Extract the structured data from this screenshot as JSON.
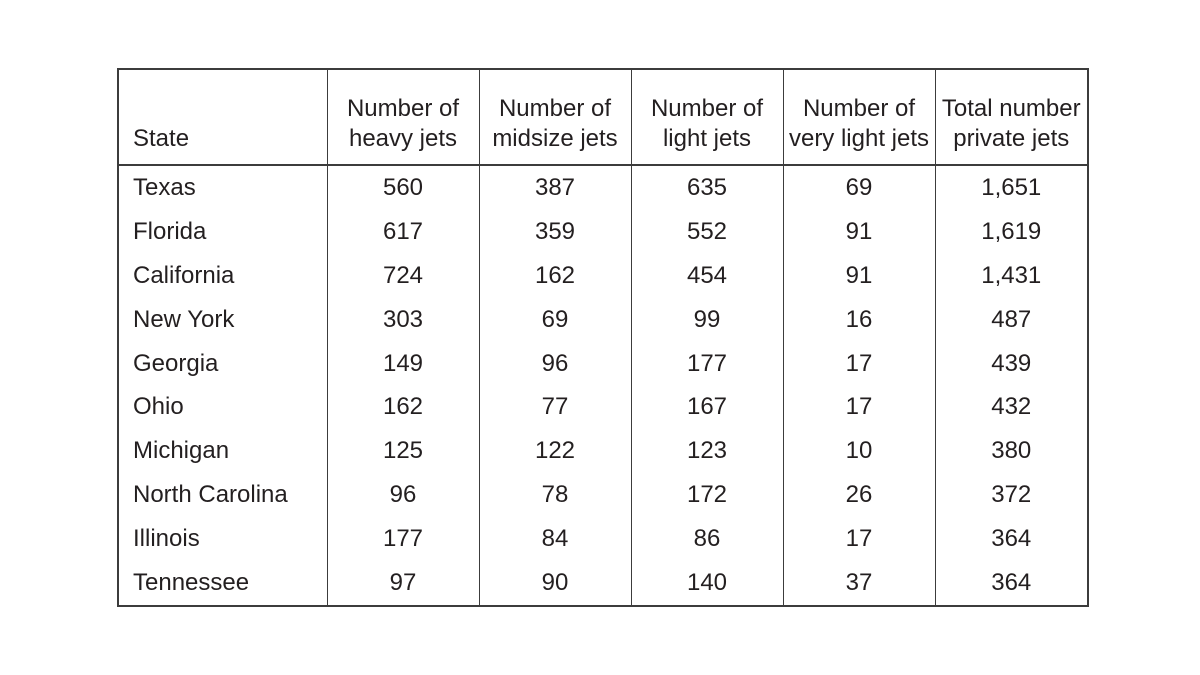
{
  "figure": {
    "background_color": "#ffffff",
    "border_color": "#3c3c3c",
    "text_color": "#231f20"
  },
  "table": {
    "columns": [
      {
        "key": "state",
        "label": "State",
        "label_lines": [
          "State"
        ]
      },
      {
        "key": "heavy",
        "label": "Number of heavy jets",
        "label_lines": [
          "Number of",
          "heavy jets"
        ]
      },
      {
        "key": "midsize",
        "label": "Number of midsize jets",
        "label_lines": [
          "Number of",
          "midsize jets"
        ]
      },
      {
        "key": "light",
        "label": "Number of light jets",
        "label_lines": [
          "Number of",
          "light jets"
        ]
      },
      {
        "key": "very_light",
        "label": "Number of very light jets",
        "label_lines": [
          "Number of",
          "very light jets"
        ]
      },
      {
        "key": "total",
        "label": "Total number private jets",
        "label_lines": [
          "Total number",
          "private jets"
        ]
      }
    ],
    "rows": [
      {
        "state": "Texas",
        "heavy": "560",
        "midsize": "387",
        "light": "635",
        "very_light": "69",
        "total": "1,651"
      },
      {
        "state": "Florida",
        "heavy": "617",
        "midsize": "359",
        "light": "552",
        "very_light": "91",
        "total": "1,619"
      },
      {
        "state": "California",
        "heavy": "724",
        "midsize": "162",
        "light": "454",
        "very_light": "91",
        "total": "1,431"
      },
      {
        "state": "New York",
        "heavy": "303",
        "midsize": "69",
        "light": "99",
        "very_light": "16",
        "total": "487"
      },
      {
        "state": "Georgia",
        "heavy": "149",
        "midsize": "96",
        "light": "177",
        "very_light": "17",
        "total": "439"
      },
      {
        "state": "Ohio",
        "heavy": "162",
        "midsize": "77",
        "light": "167",
        "very_light": "17",
        "total": "432"
      },
      {
        "state": "Michigan",
        "heavy": "125",
        "midsize": "122",
        "light": "123",
        "very_light": "10",
        "total": "380"
      },
      {
        "state": "North Carolina",
        "heavy": "96",
        "midsize": "78",
        "light": "172",
        "very_light": "26",
        "total": "372"
      },
      {
        "state": "Illinois",
        "heavy": "177",
        "midsize": "84",
        "light": "86",
        "very_light": "17",
        "total": "364"
      },
      {
        "state": "Tennessee",
        "heavy": "97",
        "midsize": "90",
        "light": "140",
        "very_light": "37",
        "total": "364"
      }
    ]
  },
  "chart_data": {
    "type": "table",
    "title": "",
    "categories": [
      "Texas",
      "Florida",
      "California",
      "New York",
      "Georgia",
      "Ohio",
      "Michigan",
      "North Carolina",
      "Illinois",
      "Tennessee"
    ],
    "series": [
      {
        "name": "Number of heavy jets",
        "values": [
          560,
          617,
          724,
          303,
          149,
          162,
          125,
          96,
          177,
          97
        ]
      },
      {
        "name": "Number of midsize jets",
        "values": [
          387,
          359,
          162,
          69,
          96,
          77,
          122,
          78,
          84,
          90
        ]
      },
      {
        "name": "Number of light jets",
        "values": [
          635,
          552,
          454,
          99,
          177,
          167,
          123,
          172,
          86,
          140
        ]
      },
      {
        "name": "Number of very light jets",
        "values": [
          69,
          91,
          91,
          16,
          17,
          17,
          10,
          26,
          17,
          37
        ]
      },
      {
        "name": "Total number private jets",
        "values": [
          1651,
          1619,
          1431,
          487,
          439,
          432,
          380,
          372,
          364,
          364
        ]
      }
    ]
  }
}
